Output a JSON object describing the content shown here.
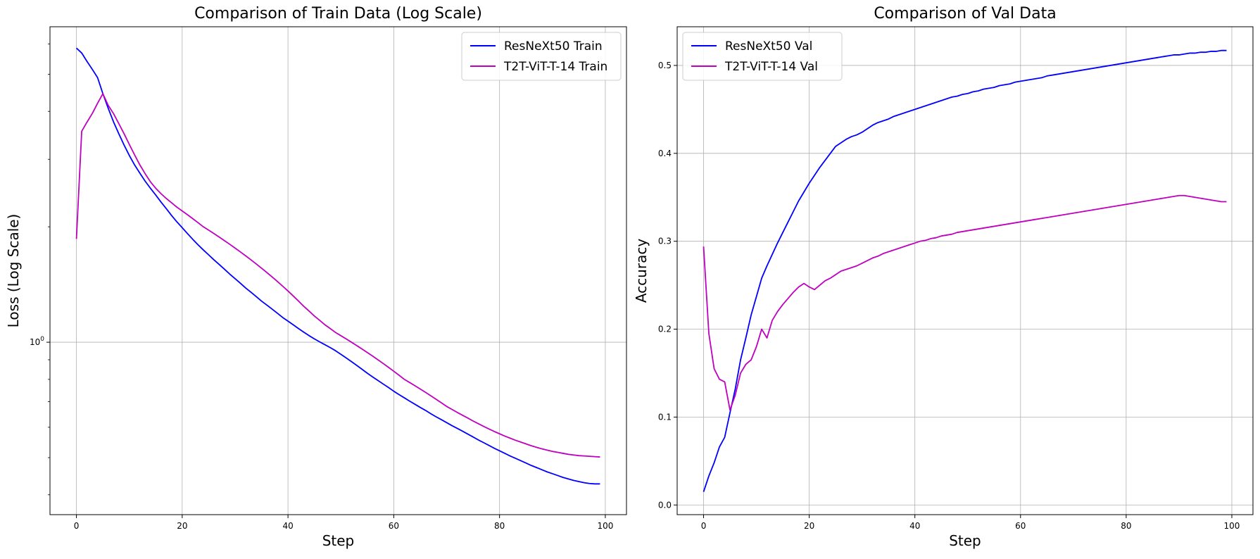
{
  "chart_data": [
    {
      "type": "line",
      "title": "Comparison of Train Data (Log Scale)",
      "xlabel": "Step",
      "ylabel": "Loss (Log Scale)",
      "yscale": "log",
      "xlim": [
        -5,
        104
      ],
      "ylim": [
        0.355,
        6.65
      ],
      "xticks": [
        0,
        20,
        40,
        60,
        80,
        100
      ],
      "yticks": [
        1
      ],
      "ytick_labels": [
        "10^0"
      ],
      "grid": true,
      "legend_position": "upper right",
      "series": [
        {
          "name": "ResNeXt50 Train",
          "color": "#0000ff",
          "values": [
            5.85,
            5.68,
            5.4,
            5.15,
            4.9,
            4.45,
            4.08,
            3.76,
            3.5,
            3.27,
            3.07,
            2.9,
            2.76,
            2.63,
            2.52,
            2.42,
            2.32,
            2.23,
            2.14,
            2.06,
            1.99,
            1.92,
            1.855,
            1.795,
            1.74,
            1.69,
            1.64,
            1.595,
            1.55,
            1.505,
            1.465,
            1.425,
            1.385,
            1.35,
            1.315,
            1.28,
            1.25,
            1.22,
            1.19,
            1.16,
            1.135,
            1.11,
            1.085,
            1.062,
            1.04,
            1.02,
            1.002,
            0.985,
            0.968,
            0.95,
            0.93,
            0.91,
            0.89,
            0.87,
            0.85,
            0.83,
            0.812,
            0.795,
            0.778,
            0.762,
            0.745,
            0.73,
            0.716,
            0.702,
            0.689,
            0.676,
            0.664,
            0.651,
            0.639,
            0.628,
            0.617,
            0.606,
            0.596,
            0.586,
            0.576,
            0.566,
            0.556,
            0.547,
            0.538,
            0.529,
            0.521,
            0.513,
            0.505,
            0.498,
            0.491,
            0.484,
            0.477,
            0.471,
            0.465,
            0.459,
            0.454,
            0.449,
            0.444,
            0.44,
            0.436,
            0.433,
            0.43,
            0.428,
            0.427,
            0.427
          ]
        },
        {
          "name": "T2T-ViT-T-14 Train",
          "color": "#bf00bf",
          "values": [
            1.86,
            3.55,
            3.75,
            3.95,
            4.2,
            4.45,
            4.15,
            3.95,
            3.72,
            3.5,
            3.28,
            3.08,
            2.9,
            2.75,
            2.62,
            2.52,
            2.44,
            2.37,
            2.31,
            2.25,
            2.2,
            2.15,
            2.1,
            2.05,
            2.0,
            1.96,
            1.92,
            1.88,
            1.84,
            1.8,
            1.76,
            1.72,
            1.68,
            1.64,
            1.6,
            1.56,
            1.52,
            1.48,
            1.44,
            1.4,
            1.36,
            1.32,
            1.28,
            1.24,
            1.205,
            1.17,
            1.14,
            1.11,
            1.085,
            1.06,
            1.04,
            1.02,
            1.0,
            0.98,
            0.96,
            0.94,
            0.92,
            0.9,
            0.88,
            0.86,
            0.84,
            0.82,
            0.8,
            0.785,
            0.77,
            0.755,
            0.74,
            0.725,
            0.71,
            0.695,
            0.68,
            0.668,
            0.656,
            0.645,
            0.634,
            0.623,
            0.613,
            0.603,
            0.594,
            0.585,
            0.577,
            0.569,
            0.562,
            0.555,
            0.549,
            0.543,
            0.537,
            0.532,
            0.527,
            0.523,
            0.519,
            0.516,
            0.513,
            0.51,
            0.508,
            0.506,
            0.505,
            0.504,
            0.503,
            0.502
          ]
        }
      ]
    },
    {
      "type": "line",
      "title": "Comparison of Val Data",
      "xlabel": "Step",
      "ylabel": "Accuracy",
      "xlim": [
        -5,
        104
      ],
      "ylim": [
        -0.011,
        0.544
      ],
      "xticks": [
        0,
        20,
        40,
        60,
        80,
        100
      ],
      "yticks": [
        0.0,
        0.1,
        0.2,
        0.3,
        0.4,
        0.5
      ],
      "ytick_labels": [
        "0.0",
        "0.1",
        "0.2",
        "0.3",
        "0.4",
        "0.5"
      ],
      "grid": true,
      "legend_position": "upper left",
      "series": [
        {
          "name": "ResNeXt50 Val",
          "color": "#0000ff",
          "values": [
            0.015,
            0.033,
            0.048,
            0.066,
            0.077,
            0.105,
            0.132,
            0.165,
            0.19,
            0.216,
            0.237,
            0.258,
            0.272,
            0.285,
            0.298,
            0.31,
            0.322,
            0.334,
            0.346,
            0.356,
            0.366,
            0.375,
            0.384,
            0.392,
            0.4,
            0.408,
            0.412,
            0.416,
            0.419,
            0.421,
            0.424,
            0.428,
            0.432,
            0.435,
            0.437,
            0.439,
            0.442,
            0.444,
            0.446,
            0.448,
            0.45,
            0.452,
            0.454,
            0.456,
            0.458,
            0.46,
            0.462,
            0.464,
            0.465,
            0.467,
            0.468,
            0.47,
            0.471,
            0.473,
            0.474,
            0.475,
            0.477,
            0.478,
            0.479,
            0.481,
            0.482,
            0.483,
            0.484,
            0.485,
            0.486,
            0.488,
            0.489,
            0.49,
            0.491,
            0.492,
            0.493,
            0.494,
            0.495,
            0.496,
            0.497,
            0.498,
            0.499,
            0.5,
            0.501,
            0.502,
            0.503,
            0.504,
            0.505,
            0.506,
            0.507,
            0.508,
            0.509,
            0.51,
            0.511,
            0.512,
            0.512,
            0.513,
            0.514,
            0.514,
            0.515,
            0.515,
            0.516,
            0.516,
            0.517,
            0.517
          ]
        },
        {
          "name": "T2T-ViT-T-14 Val",
          "color": "#bf00bf",
          "values": [
            0.294,
            0.195,
            0.155,
            0.143,
            0.14,
            0.108,
            0.125,
            0.15,
            0.16,
            0.165,
            0.18,
            0.2,
            0.19,
            0.21,
            0.22,
            0.228,
            0.235,
            0.242,
            0.248,
            0.252,
            0.248,
            0.245,
            0.25,
            0.255,
            0.258,
            0.262,
            0.266,
            0.268,
            0.27,
            0.272,
            0.275,
            0.278,
            0.281,
            0.283,
            0.286,
            0.288,
            0.29,
            0.292,
            0.294,
            0.296,
            0.298,
            0.3,
            0.301,
            0.303,
            0.304,
            0.306,
            0.307,
            0.308,
            0.31,
            0.311,
            0.312,
            0.313,
            0.314,
            0.315,
            0.316,
            0.317,
            0.318,
            0.319,
            0.32,
            0.321,
            0.322,
            0.323,
            0.324,
            0.325,
            0.326,
            0.327,
            0.328,
            0.329,
            0.33,
            0.331,
            0.332,
            0.333,
            0.334,
            0.335,
            0.336,
            0.337,
            0.338,
            0.339,
            0.34,
            0.341,
            0.342,
            0.343,
            0.344,
            0.345,
            0.346,
            0.347,
            0.348,
            0.349,
            0.35,
            0.351,
            0.352,
            0.352,
            0.351,
            0.35,
            0.349,
            0.348,
            0.347,
            0.346,
            0.345,
            0.345
          ]
        }
      ]
    }
  ]
}
